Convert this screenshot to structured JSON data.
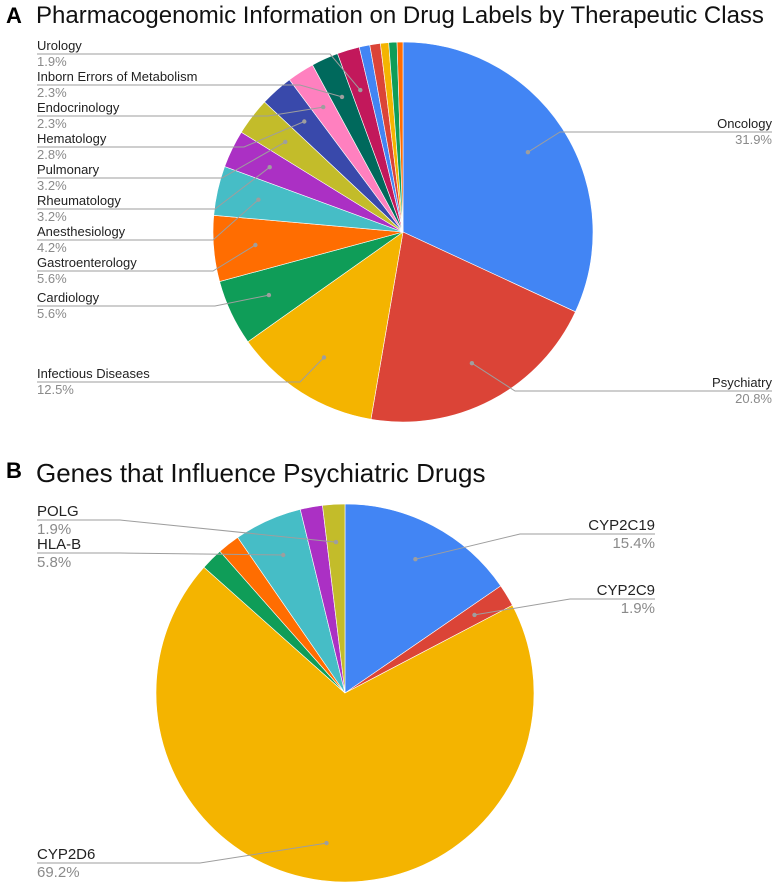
{
  "panels": {
    "a": {
      "letter": "A",
      "title": "Pharmacogenomic Information on Drug Labels by Therapeutic Class"
    },
    "b": {
      "letter": "B",
      "title": "Genes that Influence Psychiatric Drugs"
    }
  },
  "chart_data": [
    {
      "type": "pie",
      "title": "Pharmacogenomic Information on Drug Labels by Therapeutic Class",
      "slices": [
        {
          "label": "Oncology",
          "value": 31.9,
          "display": "31.9%",
          "color": "#4285f4"
        },
        {
          "label": "Psychiatry",
          "value": 20.8,
          "display": "20.8%",
          "color": "#db4437"
        },
        {
          "label": "Infectious Diseases",
          "value": 12.5,
          "display": "12.5%",
          "color": "#f4b400"
        },
        {
          "label": "Cardiology",
          "value": 5.6,
          "display": "5.6%",
          "color": "#0f9d58"
        },
        {
          "label": "Gastroenterology",
          "value": 5.6,
          "display": "5.6%",
          "color": "#ff6d01"
        },
        {
          "label": "Anesthesiology",
          "value": 4.2,
          "display": "4.2%",
          "color": "#46bdc6"
        },
        {
          "label": "Rheumatology",
          "value": 3.2,
          "display": "3.2%",
          "color": "#ab30c4"
        },
        {
          "label": "Pulmonary",
          "value": 3.2,
          "display": "3.2%",
          "color": "#c3bc2a"
        },
        {
          "label": "Hematology",
          "value": 2.8,
          "display": "2.8%",
          "color": "#3949ab"
        },
        {
          "label": "Endocrinology",
          "value": 2.3,
          "display": "2.3%",
          "color": "#ff80bf"
        },
        {
          "label": "Inborn Errors of Metabolism",
          "value": 2.3,
          "display": "2.3%",
          "color": "#00695c"
        },
        {
          "label": "Urology",
          "value": 1.9,
          "display": "1.9%",
          "color": "#c2185b"
        },
        {
          "label": "",
          "value": 0.9,
          "display": "",
          "color": "#4285f4"
        },
        {
          "label": "",
          "value": 0.9,
          "display": "",
          "color": "#db4437"
        },
        {
          "label": "",
          "value": 0.7,
          "display": "",
          "color": "#f4b400"
        },
        {
          "label": "",
          "value": 0.7,
          "display": "",
          "color": "#0f9d58"
        },
        {
          "label": "",
          "value": 0.5,
          "display": "",
          "color": "#ff6d01"
        }
      ]
    },
    {
      "type": "pie",
      "title": "Genes that Influence Psychiatric Drugs",
      "slices": [
        {
          "label": "CYP2C19",
          "value": 15.4,
          "display": "15.4%",
          "color": "#4285f4"
        },
        {
          "label": "CYP2C9",
          "value": 1.9,
          "display": "1.9%",
          "color": "#db4437"
        },
        {
          "label": "CYP2D6",
          "value": 69.2,
          "display": "69.2%",
          "color": "#f4b400"
        },
        {
          "label": "",
          "value": 1.9,
          "display": "",
          "color": "#0f9d58"
        },
        {
          "label": "",
          "value": 1.9,
          "display": "",
          "color": "#ff6d01"
        },
        {
          "label": "HLA-B",
          "value": 5.8,
          "display": "5.8%",
          "color": "#46bdc6"
        },
        {
          "label": "",
          "value": 1.9,
          "display": "",
          "color": "#ab30c4"
        },
        {
          "label": "POLG",
          "value": 1.9,
          "display": "1.9%",
          "color": "#c3bc2a"
        }
      ]
    }
  ]
}
